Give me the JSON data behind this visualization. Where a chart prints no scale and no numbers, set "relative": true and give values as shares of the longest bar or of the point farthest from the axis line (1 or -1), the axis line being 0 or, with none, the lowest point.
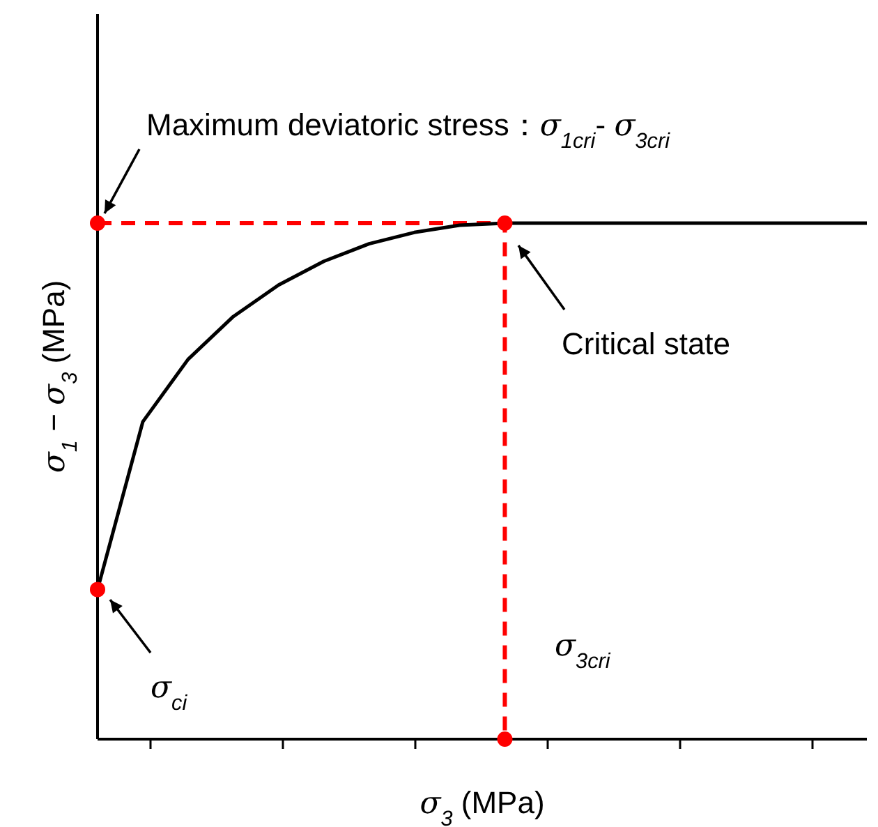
{
  "chart_data": {
    "type": "line",
    "relative": true,
    "xlabel": "σ$_{3}$ (MPa)",
    "ylabel": "σ$_{1}$ − σ$_{3}$ (MPa)",
    "categories": [
      null,
      null,
      null,
      null,
      null,
      null,
      null,
      null,
      null,
      null,
      null,
      null,
      null,
      null,
      null,
      null,
      null,
      null
    ],
    "series": [
      {
        "color": "#000000",
        "line_style": "solid",
        "values": [
          0.29,
          0.615,
          0.736,
          0.819,
          0.88,
          0.926,
          0.96,
          0.982,
          0.996,
          1,
          1,
          1,
          1,
          1,
          1,
          1,
          1,
          1
        ]
      }
    ],
    "annotations": [
      "Maximum deviatoric stress：σ$_{1cri}$- σ$_{3cri}$",
      "Critical state",
      "σ$_{ci}$",
      "σ$_{3cri}$"
    ]
  }
}
